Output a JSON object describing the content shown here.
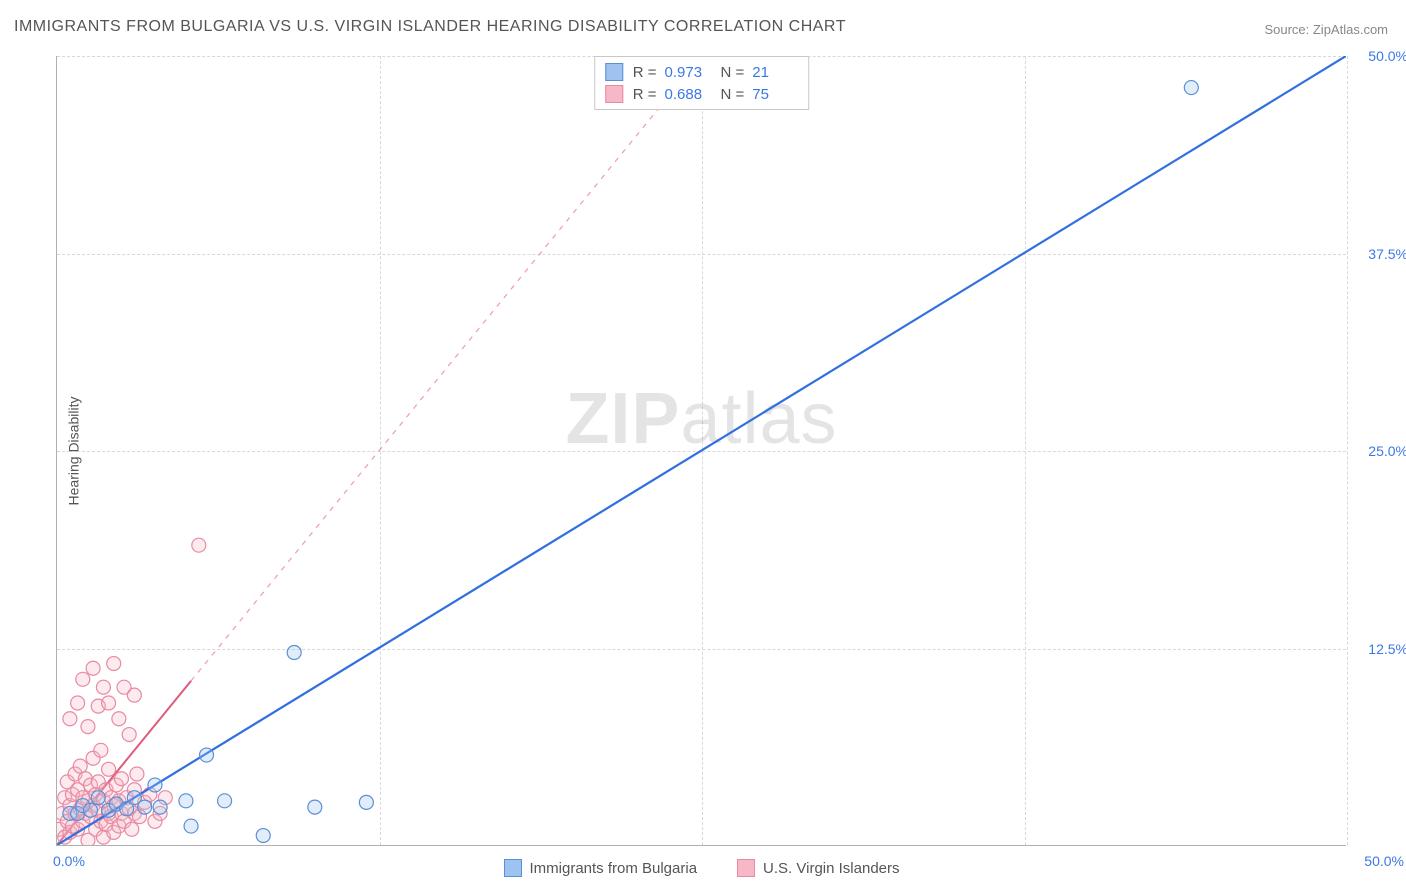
{
  "title": "IMMIGRANTS FROM BULGARIA VS U.S. VIRGIN ISLANDER HEARING DISABILITY CORRELATION CHART",
  "source_label": "Source: ZipAtlas.com",
  "watermark": {
    "bold": "ZIP",
    "rest": "atlas"
  },
  "chart": {
    "type": "scatter",
    "xlim": [
      0,
      50
    ],
    "ylim": [
      0,
      50
    ],
    "x_tick_labels": {
      "min": "0.0%",
      "max": "50.0%"
    },
    "y_tick_labels": [
      "12.5%",
      "25.0%",
      "37.5%",
      "50.0%"
    ],
    "y_tick_values": [
      12.5,
      25.0,
      37.5,
      50.0
    ],
    "x_gridline_values": [
      12.5,
      25.0,
      37.5,
      50.0
    ],
    "grid_color": "#d8d8d8",
    "axis_color": "#b0b0b0",
    "background_color": "#ffffff",
    "ylabel": "Hearing Disability",
    "label_fontsize": 14,
    "label_color": "#555555",
    "tick_label_color": "#3b78e7",
    "tick_label_fontsize": 14,
    "title_fontsize": 16,
    "title_color": "#555555",
    "marker_radius": 7,
    "marker_fill_opacity": 0.3,
    "marker_stroke_width": 1.2,
    "series": [
      {
        "id": "bulgaria",
        "label": "Immigrants from Bulgaria",
        "color_fill": "#9ec3f0",
        "color_stroke": "#5a8fd6",
        "trend_color": "#2f6fe0",
        "trend_width": 2.2,
        "trend_dash": "none",
        "R": "0.973",
        "N": "21",
        "trend_line": {
          "x1": 0,
          "y1": 0,
          "x2": 50,
          "y2": 50
        },
        "points": [
          [
            0.5,
            2.0
          ],
          [
            0.8,
            2.0
          ],
          [
            1.0,
            2.5
          ],
          [
            1.3,
            2.2
          ],
          [
            1.6,
            3.0
          ],
          [
            2.0,
            2.2
          ],
          [
            2.3,
            2.6
          ],
          [
            2.7,
            2.3
          ],
          [
            3.0,
            3.0
          ],
          [
            3.4,
            2.4
          ],
          [
            4.0,
            2.4
          ],
          [
            5.0,
            2.8
          ],
          [
            5.2,
            1.2
          ],
          [
            5.8,
            5.7
          ],
          [
            6.5,
            2.8
          ],
          [
            8.0,
            0.6
          ],
          [
            9.2,
            12.2
          ],
          [
            10.0,
            2.4
          ],
          [
            12.0,
            2.7
          ],
          [
            44.0,
            48.0
          ],
          [
            3.8,
            3.8
          ]
        ]
      },
      {
        "id": "usvi",
        "label": "U.S. Virgin Islanders",
        "color_fill": "#f6b8c6",
        "color_stroke": "#e88aa2",
        "trend_color": "#e05a7a",
        "trend_width": 2.0,
        "trend_dash": "5,6",
        "R": "0.688",
        "N": "75",
        "trend_line": {
          "x1": 0,
          "y1": 0,
          "x2": 25,
          "y2": 50
        },
        "solid_segment": {
          "x1": 0,
          "y1": 0,
          "x2": 5.2,
          "y2": 10.4
        },
        "points": [
          [
            0.1,
            1.0
          ],
          [
            0.2,
            2.0
          ],
          [
            0.3,
            0.5
          ],
          [
            0.3,
            3.0
          ],
          [
            0.4,
            1.5
          ],
          [
            0.4,
            4.0
          ],
          [
            0.5,
            2.5
          ],
          [
            0.5,
            0.8
          ],
          [
            0.6,
            3.2
          ],
          [
            0.6,
            1.2
          ],
          [
            0.7,
            2.0
          ],
          [
            0.7,
            4.5
          ],
          [
            0.8,
            1.0
          ],
          [
            0.8,
            3.5
          ],
          [
            0.9,
            2.3
          ],
          [
            0.9,
            5.0
          ],
          [
            1.0,
            1.5
          ],
          [
            1.0,
            3.0
          ],
          [
            1.1,
            2.0
          ],
          [
            1.1,
            4.2
          ],
          [
            1.2,
            0.3
          ],
          [
            1.2,
            2.8
          ],
          [
            1.3,
            1.8
          ],
          [
            1.3,
            3.8
          ],
          [
            1.4,
            2.5
          ],
          [
            1.4,
            5.5
          ],
          [
            1.5,
            1.0
          ],
          [
            1.5,
            3.2
          ],
          [
            1.6,
            2.2
          ],
          [
            1.6,
            4.0
          ],
          [
            1.7,
            1.5
          ],
          [
            1.7,
            6.0
          ],
          [
            1.8,
            2.8
          ],
          [
            1.8,
            0.5
          ],
          [
            1.9,
            3.5
          ],
          [
            1.9,
            1.3
          ],
          [
            2.0,
            2.0
          ],
          [
            2.0,
            4.8
          ],
          [
            2.1,
            1.8
          ],
          [
            2.1,
            3.0
          ],
          [
            2.2,
            2.5
          ],
          [
            2.2,
            0.8
          ],
          [
            2.3,
            3.8
          ],
          [
            2.4,
            1.2
          ],
          [
            2.4,
            2.8
          ],
          [
            2.5,
            2.0
          ],
          [
            2.5,
            4.2
          ],
          [
            2.6,
            1.5
          ],
          [
            2.7,
            3.0
          ],
          [
            2.8,
            2.3
          ],
          [
            2.9,
            1.0
          ],
          [
            3.0,
            3.5
          ],
          [
            3.0,
            2.0
          ],
          [
            3.1,
            4.5
          ],
          [
            3.2,
            1.8
          ],
          [
            3.4,
            2.7
          ],
          [
            3.6,
            3.2
          ],
          [
            3.8,
            1.5
          ],
          [
            4.0,
            2.0
          ],
          [
            4.2,
            3.0
          ],
          [
            0.5,
            8.0
          ],
          [
            0.8,
            9.0
          ],
          [
            1.0,
            10.5
          ],
          [
            1.4,
            11.2
          ],
          [
            1.2,
            7.5
          ],
          [
            1.6,
            8.8
          ],
          [
            1.8,
            10.0
          ],
          [
            2.0,
            9.0
          ],
          [
            2.2,
            11.5
          ],
          [
            2.4,
            8.0
          ],
          [
            2.6,
            10.0
          ],
          [
            2.8,
            7.0
          ],
          [
            3.0,
            9.5
          ],
          [
            5.5,
            19.0
          ],
          [
            1.0,
            -0.5
          ]
        ]
      }
    ]
  },
  "legend_top": {
    "border_color": "#c8c8c8",
    "r_label": "R =",
    "n_label": "N ="
  },
  "legend_bottom_fontsize": 15
}
